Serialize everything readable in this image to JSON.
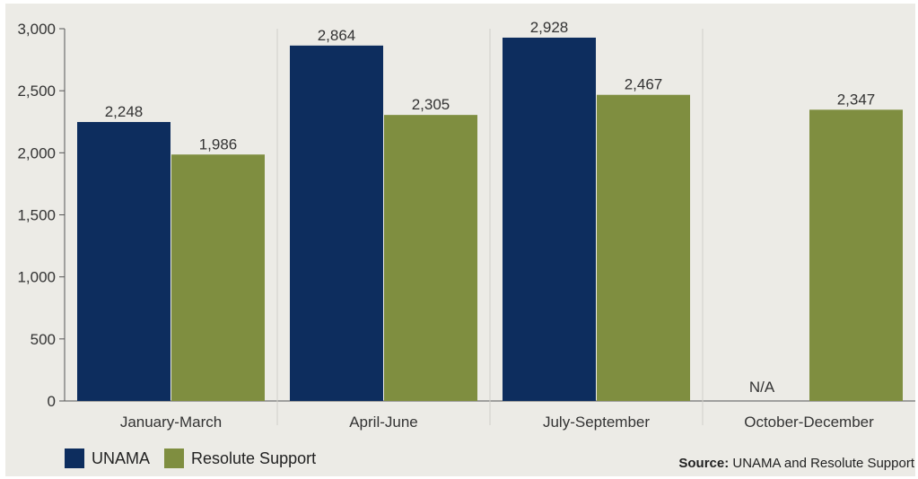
{
  "chart_data": {
    "type": "bar",
    "categories": [
      "January-March",
      "April-June",
      "July-September",
      "October-December"
    ],
    "series": [
      {
        "name": "UNAMA",
        "values": [
          2248,
          2864,
          2928,
          null
        ],
        "color": "#0d2d5e"
      },
      {
        "name": "Resolute Support",
        "values": [
          1986,
          2305,
          2467,
          2347
        ],
        "color": "#7f8e40"
      }
    ],
    "data_labels": [
      [
        "2,248",
        "2,864",
        "2,928",
        "N/A"
      ],
      [
        "1,986",
        "2,305",
        "2,467",
        "2,347"
      ]
    ],
    "y_ticks": [
      0,
      500,
      1000,
      1500,
      2000,
      2500,
      3000
    ],
    "y_tick_labels": [
      "0",
      "500",
      "1,000",
      "1,500",
      "2,000",
      "2,500",
      "3,000"
    ],
    "ylim": [
      0,
      3000
    ],
    "grid": false,
    "legend_position": "bottom-left",
    "title": "",
    "xlabel": "",
    "ylabel": ""
  },
  "legend": {
    "items": [
      {
        "label": "UNAMA",
        "color": "#0d2d5e"
      },
      {
        "label": "Resolute Support",
        "color": "#7f8e40"
      }
    ]
  },
  "source": {
    "label": "Source:",
    "text": " UNAMA and Resolute Support"
  }
}
